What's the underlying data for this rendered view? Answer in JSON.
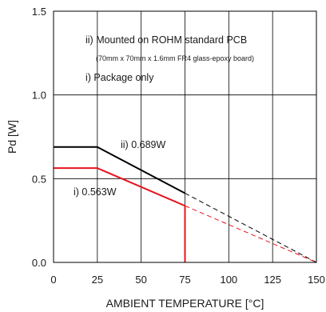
{
  "chart_data": {
    "type": "line",
    "xlabel": "AMBIENT TEMPERATURE [°C]",
    "ylabel": "Pd [W]",
    "xlim": [
      0,
      150
    ],
    "ylim": [
      0,
      1.5
    ],
    "x_ticks": [
      0,
      25,
      50,
      75,
      100,
      125,
      150
    ],
    "x_tick_labels": [
      "0",
      "25",
      "50",
      "75",
      "100",
      "125",
      "150"
    ],
    "y_ticks": [
      0,
      0.5,
      1.0,
      1.5
    ],
    "y_tick_labels": [
      "0.0",
      "0.5",
      "1.0",
      "1.5"
    ],
    "grid": true,
    "series": [
      {
        "name": "ii) 0.689W",
        "color": "#000000",
        "points": [
          [
            0,
            0.689
          ],
          [
            25,
            0.689
          ],
          [
            75,
            0.413
          ]
        ],
        "extrapolation": [
          [
            75,
            0.413
          ],
          [
            150,
            0
          ]
        ]
      },
      {
        "name": "i) 0.563W",
        "color": "#e8141c",
        "points": [
          [
            0,
            0.563
          ],
          [
            25,
            0.563
          ],
          [
            75,
            0.338
          ]
        ],
        "cutoff": [
          [
            75,
            0.338
          ],
          [
            75,
            0
          ]
        ],
        "extrapolation": [
          [
            75,
            0.338
          ],
          [
            150,
            0
          ]
        ]
      }
    ],
    "annotations": {
      "line1": "ii) Mounted on ROHM standard PCB",
      "line2": "(70mm x 70mm x 1.6mm FR4 glass-epoxy board)",
      "line3": "i) Package only"
    }
  }
}
